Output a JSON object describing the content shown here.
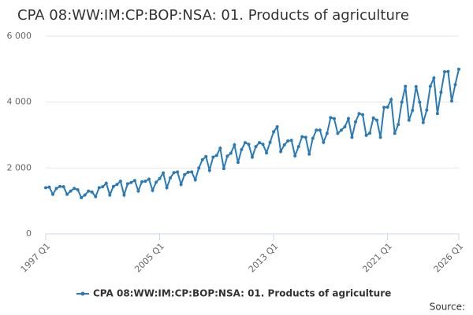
{
  "chart_data": {
    "type": "line",
    "title": "CPA 08:WW:IM:CP:BOP:NSA: 01. Products of agriculture",
    "source": "Source:",
    "categories": [
      "1997 Q1",
      null,
      null,
      null,
      null,
      null,
      null,
      null,
      null,
      null,
      null,
      null,
      null,
      null,
      null,
      null,
      null,
      null,
      null,
      null,
      null,
      null,
      null,
      null,
      null,
      null,
      null,
      null,
      null,
      null,
      null,
      null,
      "2005 Q1",
      null,
      null,
      null,
      null,
      null,
      null,
      null,
      null,
      null,
      null,
      null,
      null,
      null,
      null,
      null,
      null,
      null,
      null,
      null,
      null,
      null,
      null,
      null,
      null,
      null,
      null,
      null,
      null,
      null,
      null,
      null,
      "2013 Q1",
      null,
      null,
      null,
      null,
      null,
      null,
      null,
      null,
      null,
      null,
      null,
      null,
      null,
      null,
      null,
      null,
      null,
      null,
      null,
      null,
      null,
      null,
      null,
      null,
      null,
      null,
      null,
      null,
      null,
      null,
      null,
      "2021 Q1",
      null,
      null,
      null,
      null,
      null,
      null,
      null,
      null,
      null,
      null,
      null,
      null,
      null,
      null,
      null,
      null,
      null,
      null,
      null,
      "2026 Q1"
    ],
    "series": [
      {
        "name": "CPA 08:WW:IM:CP:BOP:NSA: 01. Products of agriculture",
        "color": "#2a7ab8",
        "values": [
          1400,
          1420,
          1200,
          1380,
          1440,
          1430,
          1200,
          1300,
          1380,
          1340,
          1100,
          1180,
          1300,
          1270,
          1130,
          1400,
          1430,
          1540,
          1180,
          1440,
          1500,
          1600,
          1180,
          1520,
          1560,
          1620,
          1300,
          1580,
          1600,
          1660,
          1320,
          1570,
          1680,
          1850,
          1400,
          1700,
          1860,
          1880,
          1500,
          1800,
          1870,
          1880,
          1640,
          2000,
          2250,
          2350,
          1930,
          2330,
          2380,
          2600,
          1980,
          2360,
          2450,
          2700,
          2170,
          2560,
          2770,
          2720,
          2330,
          2650,
          2770,
          2720,
          2460,
          2780,
          3100,
          3250,
          2500,
          2700,
          2820,
          2840,
          2370,
          2650,
          2950,
          2930,
          2420,
          2900,
          3150,
          3150,
          2780,
          3050,
          3530,
          3500,
          3050,
          3150,
          3250,
          3500,
          2930,
          3400,
          3650,
          3620,
          2990,
          3060,
          3520,
          3450,
          2930,
          3840,
          3850,
          4080,
          3050,
          3320,
          4000,
          4480,
          3450,
          3750,
          4470,
          4000,
          3380,
          3760,
          4480,
          4730,
          3650,
          4300,
          4920,
          4930,
          4030,
          4530,
          5000
        ]
      }
    ],
    "ylim": [
      0,
      6000
    ],
    "yticks": [
      0,
      {
        "value": 2000,
        "label": "2 000"
      },
      {
        "value": 4000,
        "label": "4 000"
      },
      {
        "value": 6000,
        "label": "6 000"
      }
    ],
    "grid": true
  }
}
